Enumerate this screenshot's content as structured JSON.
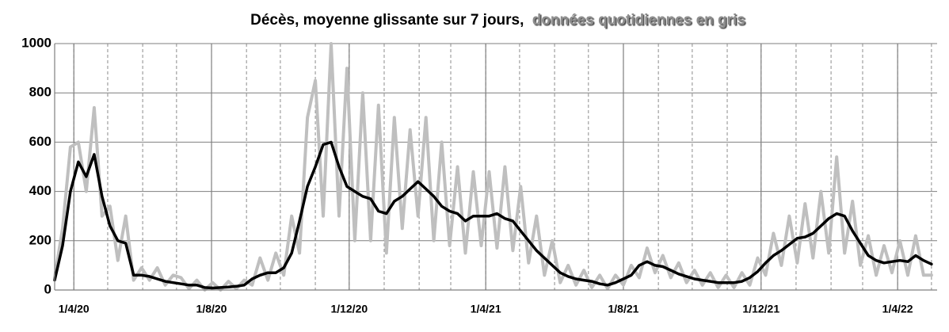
{
  "chart_data": {
    "type": "line",
    "title": "Décès, moyenne glissante sur 7 jours,",
    "title_note": "données quotidiennes en gris",
    "x": [
      "15/3/20",
      "22/3/20",
      "29/3/20",
      "5/4/20",
      "12/4/20",
      "19/4/20",
      "26/4/20",
      "3/5/20",
      "10/5/20",
      "17/5/20",
      "24/5/20",
      "31/5/20",
      "7/6/20",
      "14/6/20",
      "21/6/20",
      "28/6/20",
      "5/7/20",
      "12/7/20",
      "19/7/20",
      "26/7/20",
      "2/8/20",
      "9/8/20",
      "16/8/20",
      "23/8/20",
      "30/8/20",
      "6/9/20",
      "13/9/20",
      "20/9/20",
      "27/9/20",
      "4/10/20",
      "11/10/20",
      "18/10/20",
      "25/10/20",
      "1/11/20",
      "8/11/20",
      "15/11/20",
      "22/11/20",
      "29/11/20",
      "6/12/20",
      "13/12/20",
      "20/12/20",
      "27/12/20",
      "3/1/21",
      "10/1/21",
      "17/1/21",
      "24/1/21",
      "31/1/21",
      "7/2/21",
      "14/2/21",
      "21/2/21",
      "28/2/21",
      "7/3/21",
      "14/3/21",
      "21/3/21",
      "28/3/21",
      "4/4/21",
      "11/4/21",
      "18/4/21",
      "25/4/21",
      "2/5/21",
      "9/5/21",
      "16/5/21",
      "23/5/21",
      "30/5/21",
      "6/6/21",
      "13/6/21",
      "20/6/21",
      "27/6/21",
      "4/7/21",
      "11/7/21",
      "18/7/21",
      "25/7/21",
      "1/8/21",
      "8/8/21",
      "15/8/21",
      "22/8/21",
      "29/8/21",
      "5/9/21",
      "12/9/21",
      "19/9/21",
      "26/9/21",
      "3/10/21",
      "10/10/21",
      "17/10/21",
      "24/10/21",
      "31/10/21",
      "7/11/21",
      "14/11/21",
      "21/11/21",
      "28/11/21",
      "5/12/21",
      "12/12/21",
      "19/12/21",
      "26/12/21",
      "2/1/22",
      "9/1/22",
      "16/1/22",
      "23/1/22",
      "30/1/22",
      "6/2/22",
      "13/2/22",
      "20/2/22",
      "27/2/22",
      "6/3/22",
      "13/3/22",
      "20/3/22",
      "27/3/22",
      "3/4/22",
      "10/4/22",
      "17/4/22",
      "24/4/22",
      "1/5/22"
    ],
    "series": [
      {
        "name": "données quotidiennes",
        "color": "#bfbfbf",
        "width": 4,
        "values": [
          50,
          250,
          580,
          600,
          400,
          740,
          300,
          340,
          120,
          300,
          40,
          90,
          40,
          90,
          20,
          60,
          50,
          5,
          40,
          0,
          30,
          0,
          35,
          5,
          40,
          20,
          130,
          40,
          150,
          60,
          300,
          150,
          700,
          850,
          300,
          1000,
          300,
          900,
          200,
          800,
          200,
          750,
          150,
          700,
          250,
          650,
          300,
          700,
          200,
          600,
          180,
          500,
          150,
          480,
          180,
          480,
          170,
          500,
          160,
          420,
          110,
          300,
          60,
          200,
          30,
          100,
          20,
          80,
          10,
          60,
          5,
          60,
          20,
          100,
          50,
          170,
          70,
          140,
          50,
          110,
          30,
          80,
          20,
          70,
          10,
          60,
          10,
          70,
          20,
          130,
          60,
          230,
          100,
          300,
          110,
          350,
          130,
          400,
          150,
          540,
          150,
          360,
          100,
          220,
          60,
          180,
          70,
          200,
          60,
          220,
          60,
          60
        ]
      },
      {
        "name": "moyenne glissante sur 7 jours",
        "color": "#000000",
        "width": 3.5,
        "values": [
          40,
          180,
          400,
          520,
          460,
          550,
          380,
          260,
          200,
          190,
          60,
          60,
          55,
          45,
          35,
          30,
          25,
          20,
          20,
          10,
          8,
          10,
          12,
          15,
          20,
          45,
          60,
          70,
          70,
          90,
          150,
          280,
          420,
          500,
          590,
          600,
          500,
          420,
          400,
          380,
          370,
          320,
          310,
          360,
          380,
          410,
          440,
          410,
          380,
          340,
          320,
          310,
          280,
          300,
          300,
          300,
          310,
          290,
          280,
          240,
          200,
          160,
          130,
          100,
          70,
          55,
          45,
          40,
          35,
          25,
          20,
          30,
          45,
          60,
          100,
          115,
          100,
          95,
          80,
          65,
          55,
          45,
          40,
          35,
          30,
          30,
          30,
          35,
          50,
          75,
          110,
          140,
          160,
          185,
          210,
          215,
          230,
          260,
          290,
          310,
          300,
          240,
          190,
          140,
          120,
          110,
          115,
          120,
          115,
          140,
          120,
          105
        ]
      }
    ],
    "xlim": [
      "15/3/20",
      "6/5/22"
    ],
    "xticks": [
      "1/4/20",
      "1/8/20",
      "1/12/20",
      "1/4/21",
      "1/8/21",
      "1/12/21",
      "1/4/22"
    ],
    "ylim": [
      0,
      1000
    ],
    "yticks": [
      0,
      200,
      400,
      600,
      800,
      1000
    ],
    "grid": true
  }
}
